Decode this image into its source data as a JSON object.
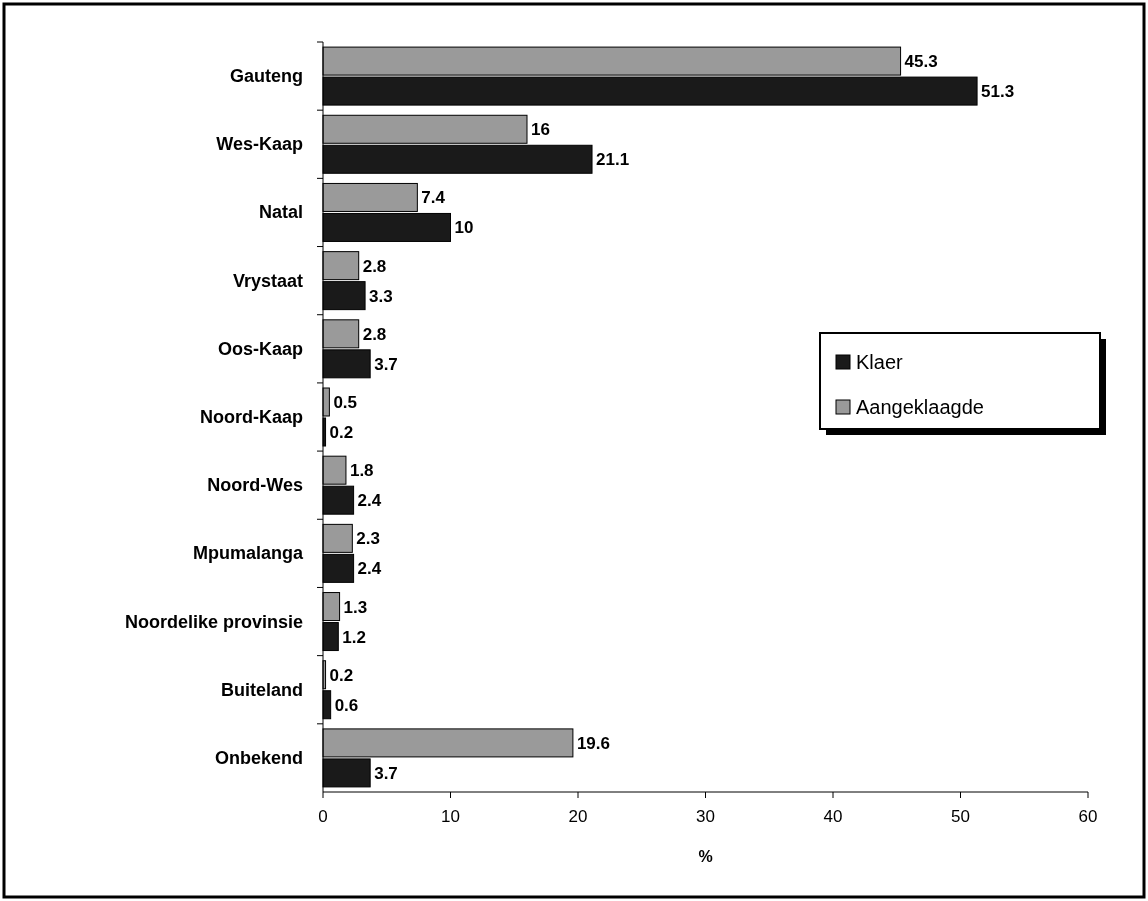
{
  "chart_data": {
    "type": "bar",
    "orientation": "horizontal",
    "xlabel": "%",
    "categories": [
      "Gauteng",
      "Wes-Kaap",
      "Natal",
      "Vrystaat",
      "Oos-Kaap",
      "Noord-Kaap",
      "Noord-Wes",
      "Mpumalanga",
      "Noordelike provinsie",
      "Buiteland",
      "Onbekend"
    ],
    "series": [
      {
        "name": "Klaer",
        "color": "#1a1a1a",
        "values": [
          51.3,
          21.1,
          10,
          3.3,
          3.7,
          0.2,
          2.4,
          2.4,
          1.2,
          0.6,
          3.7
        ]
      },
      {
        "name": "Aangeklaagde",
        "color": "#9a9a9a",
        "values": [
          45.3,
          16,
          7.4,
          2.8,
          2.8,
          0.5,
          1.8,
          2.3,
          1.3,
          0.2,
          19.6
        ]
      }
    ],
    "xlim": [
      0,
      60
    ],
    "xticks": [
      0,
      10,
      20,
      30,
      40,
      50,
      60
    ],
    "data_labels": true,
    "legend": "right",
    "grid": false
  }
}
